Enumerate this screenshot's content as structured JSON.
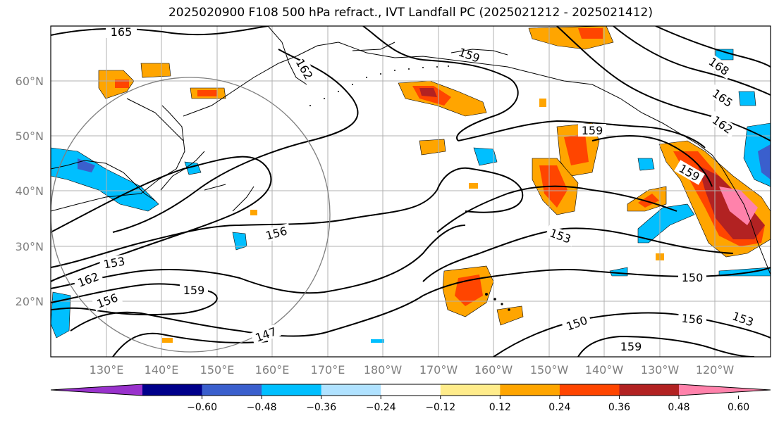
{
  "title": "2025020900 F108 500 hPa refract., IVT Landfall PC (2025021212 - 2025021412)",
  "lat_labels": [
    "60°N",
    "50°N",
    "40°N",
    "30°N",
    "20°N"
  ],
  "lon_labels": [
    "130°E",
    "140°E",
    "150°E",
    "160°E",
    "170°E",
    "180°W",
    "170°W",
    "160°W",
    "150°W",
    "140°W",
    "130°W",
    "120°W"
  ],
  "contour_labels": [
    "165",
    "162",
    "159",
    "168",
    "165",
    "162",
    "159",
    "159",
    "156",
    "153",
    "153",
    "162",
    "159",
    "156",
    "147",
    "150",
    "150",
    "156",
    "153",
    "159"
  ],
  "colorbar": {
    "ticks": [
      "−0.60",
      "−0.48",
      "−0.36",
      "−0.24",
      "−0.12",
      "0.12",
      "0.24",
      "0.36",
      "0.48",
      "0.60"
    ],
    "colors": [
      "#9932cc",
      "#00008b",
      "#3a5fcd",
      "#00bfff",
      "#b0e2ff",
      "#ffffff",
      "#ffec8b",
      "#ffa500",
      "#ff4500",
      "#b22222",
      "#ff82ab"
    ]
  },
  "icons": [
    "ne-pacific-map",
    "colorbar-arrow-left",
    "colorbar-arrow-right"
  ]
}
